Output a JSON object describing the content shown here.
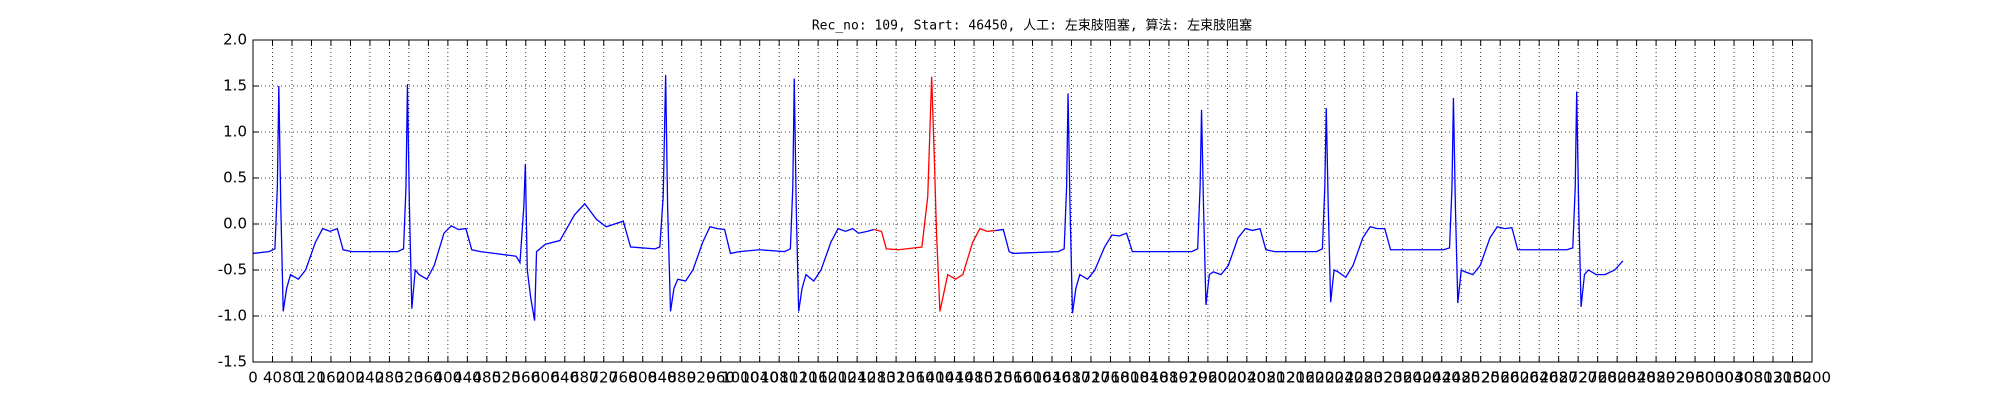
{
  "chart_data": {
    "type": "line",
    "title": "Rec_no: 109, Start: 46450, 人工: 左束肢阻塞, 算法: 左束肢阻塞",
    "xlim": [
      0,
      3200
    ],
    "xticks": [
      0,
      40,
      80,
      120,
      160,
      200,
      240,
      280,
      320,
      360,
      400,
      440,
      480,
      520,
      560,
      600,
      640,
      680,
      720,
      760,
      800,
      840,
      880,
      920,
      960,
      1000,
      1040,
      1080,
      1120,
      1160,
      1200,
      1240,
      1280,
      1320,
      1360,
      1400,
      1440,
      1480,
      1520,
      1560,
      1600,
      1640,
      1680,
      1720,
      1760,
      1800,
      1840,
      1880,
      1920,
      1960,
      2000,
      2040,
      2080,
      2120,
      2160,
      2200,
      2240,
      2280,
      2320,
      2360,
      2400,
      2440,
      2480,
      2520,
      2560,
      2600,
      2640,
      2680,
      2720,
      2760,
      2800,
      2840,
      2880,
      2920,
      2960,
      3000,
      3040,
      3080,
      3120,
      3160,
      3200
    ],
    "ylim": [
      -1.5,
      2.0
    ],
    "yticks": [
      -1.5,
      {
        "value": -1.0,
        "label": "-1.0"
      },
      -0.5,
      {
        "value": 0.0,
        "label": "0.0"
      },
      0.5,
      {
        "value": 1.0,
        "label": "1.0"
      },
      1.5,
      {
        "value": 2.0,
        "label": "2.0"
      }
    ],
    "grid": true,
    "series": [
      {
        "color": "#0000ff",
        "x": [
          0,
          33,
          45,
          50,
          53,
          57,
          62,
          69,
          77,
          93,
          108,
          128,
          143,
          158,
          173,
          185,
          203,
          297,
          309,
          314,
          317,
          321,
          326,
          333,
          341,
          357,
          372,
          392,
          407,
          422,
          437,
          449,
          467,
          540,
          548,
          556,
          559,
          563,
          570,
          578,
          582,
          600,
          630,
          660,
          681,
          705,
          725,
          760,
          775,
          825,
          835,
          842,
          847,
          851,
          857,
          864,
          872,
          888,
          903,
          923,
          938,
          953,
          968,
          980,
          998,
          1040,
          1091,
          1103,
          1108,
          1111,
          1115,
          1120,
          1127,
          1135,
          1151,
          1166,
          1186,
          1201,
          1216,
          1231,
          1243,
          1261,
          1274
        ],
        "values": [
          -0.32,
          -0.3,
          -0.27,
          0.4,
          1.5,
          0.2,
          -0.95,
          -0.7,
          -0.55,
          -0.6,
          -0.5,
          -0.2,
          -0.05,
          -0.08,
          -0.05,
          -0.28,
          -0.3,
          -0.3,
          -0.27,
          0.4,
          1.52,
          0.2,
          -0.92,
          -0.5,
          -0.55,
          -0.6,
          -0.45,
          -0.1,
          -0.02,
          -0.06,
          -0.05,
          -0.28,
          -0.3,
          -0.35,
          -0.42,
          0.2,
          0.65,
          -0.5,
          -0.8,
          -1.05,
          -0.3,
          -0.22,
          -0.18,
          0.1,
          0.22,
          0.05,
          -0.03,
          0.03,
          -0.25,
          -0.27,
          -0.25,
          0.3,
          1.62,
          0.2,
          -0.95,
          -0.7,
          -0.6,
          -0.62,
          -0.5,
          -0.2,
          -0.03,
          -0.05,
          -0.06,
          -0.32,
          -0.3,
          -0.28,
          -0.3,
          -0.27,
          0.4,
          1.58,
          0.2,
          -0.95,
          -0.7,
          -0.55,
          -0.62,
          -0.5,
          -0.2,
          -0.05,
          -0.08,
          -0.05,
          -0.1,
          -0.08,
          -0.06
        ]
      },
      {
        "color": "#ff0000",
        "x": [
          1274,
          1290,
          1300,
          1325,
          1373,
          1385,
          1393,
          1398,
          1403,
          1410,
          1418,
          1426,
          1442,
          1457,
          1477,
          1492,
          1507,
          1525
        ],
        "values": [
          -0.06,
          -0.08,
          -0.27,
          -0.28,
          -0.25,
          0.3,
          1.6,
          0.8,
          -0.1,
          -0.95,
          -0.75,
          -0.55,
          -0.6,
          -0.55,
          -0.2,
          -0.05,
          -0.08,
          -0.07
        ]
      },
      {
        "color": "#0000ff",
        "x": [
          1525,
          1540,
          1552,
          1560,
          1653,
          1665,
          1670,
          1673,
          1677,
          1682,
          1689,
          1697,
          1713,
          1728,
          1748,
          1763,
          1778,
          1793,
          1805,
          1823,
          1927,
          1939,
          1944,
          1947,
          1951,
          1956,
          1963,
          1971,
          1987,
          2002,
          2022,
          2037,
          2052,
          2067,
          2079,
          2097,
          2183,
          2195,
          2200,
          2203,
          2207,
          2212,
          2219,
          2227,
          2243,
          2258,
          2278,
          2293,
          2308,
          2323,
          2335,
          2353,
          2444,
          2456,
          2461,
          2464,
          2468,
          2473,
          2480,
          2488,
          2504,
          2519,
          2539,
          2554,
          2569,
          2584,
          2596,
          2614,
          2697,
          2709,
          2714,
          2717,
          2721,
          2726,
          2733,
          2741,
          2757,
          2775,
          2795,
          2812
        ],
        "values": [
          -0.07,
          -0.06,
          -0.3,
          -0.32,
          -0.3,
          -0.27,
          0.4,
          1.42,
          0.2,
          -0.97,
          -0.7,
          -0.55,
          -0.6,
          -0.5,
          -0.25,
          -0.12,
          -0.13,
          -0.1,
          -0.3,
          -0.3,
          -0.3,
          -0.27,
          0.4,
          1.24,
          0.2,
          -0.88,
          -0.55,
          -0.52,
          -0.55,
          -0.45,
          -0.15,
          -0.05,
          -0.07,
          -0.05,
          -0.28,
          -0.3,
          -0.3,
          -0.27,
          0.4,
          1.26,
          0.2,
          -0.85,
          -0.5,
          -0.52,
          -0.58,
          -0.45,
          -0.15,
          -0.03,
          -0.05,
          -0.05,
          -0.28,
          -0.28,
          -0.28,
          -0.26,
          0.4,
          1.37,
          0.2,
          -0.86,
          -0.5,
          -0.52,
          -0.55,
          -0.45,
          -0.15,
          -0.03,
          -0.05,
          -0.04,
          -0.28,
          -0.28,
          -0.28,
          -0.26,
          0.4,
          1.44,
          0.2,
          -0.9,
          -0.55,
          -0.5,
          -0.55,
          -0.55,
          -0.5,
          -0.4
        ]
      }
    ]
  }
}
